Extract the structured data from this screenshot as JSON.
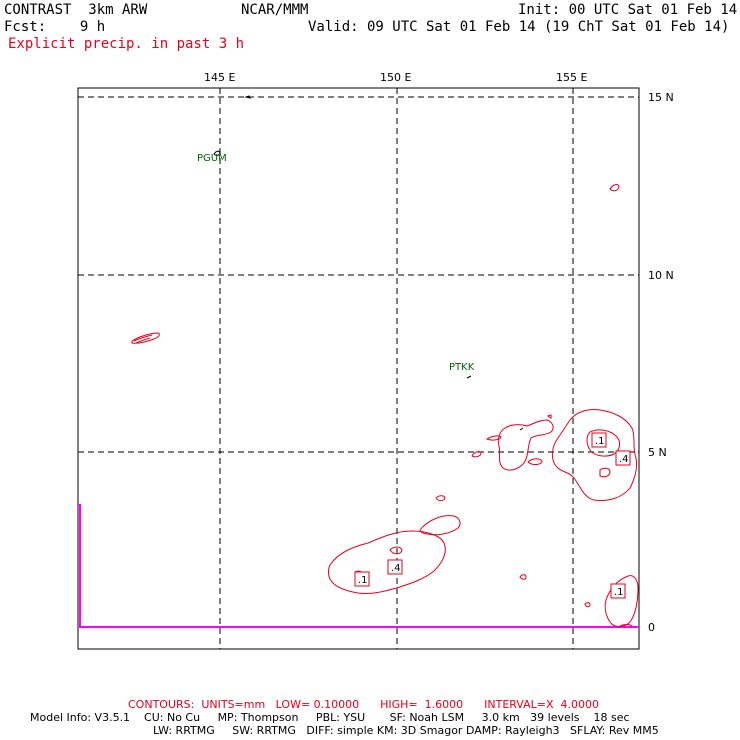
{
  "header": {
    "model": "CONTRAST  3km ARW",
    "org": "NCAR/MMM",
    "init": "Init: 00 UTC Sat 01 Feb 14",
    "fcst": "Fcst:    9 h",
    "valid": "Valid: 09 UTC Sat 01 Feb 14 (19 ChT Sat 01 Feb 14)",
    "field": "Explicit precip. in past 3 h"
  },
  "axes": {
    "lon_labels": [
      "145 E",
      "150 E",
      "155 E"
    ],
    "lat_labels": [
      "15 N",
      "10 N",
      "5 N",
      "0"
    ]
  },
  "stations": [
    {
      "id": "PGUM"
    },
    {
      "id": "PTKK"
    }
  ],
  "contour_labels": [
    ".1",
    ".4",
    ".1",
    ".4",
    ".1"
  ],
  "footer": {
    "contours": "CONTOURS:  UNITS=mm   LOW= 0.10000      HIGH=  1.6000      INTERVAL=X  4.0000",
    "model_info_1": "Model Info: V3.5.1    CU: No Cu     MP: Thompson     PBL: YSU       SF: Noah LSM     3.0 km   39 levels    18 sec",
    "model_info_2": "LW: RRTMG     SW: RRTMG   DIFF: simple KM: 3D Smagor DAMP: Rayleigh3   SFLAY: Rev MM5"
  },
  "colors": {
    "contour": "#e8001c",
    "station": "#006400",
    "boundary": "#ff00ff",
    "grid": "#000000"
  }
}
